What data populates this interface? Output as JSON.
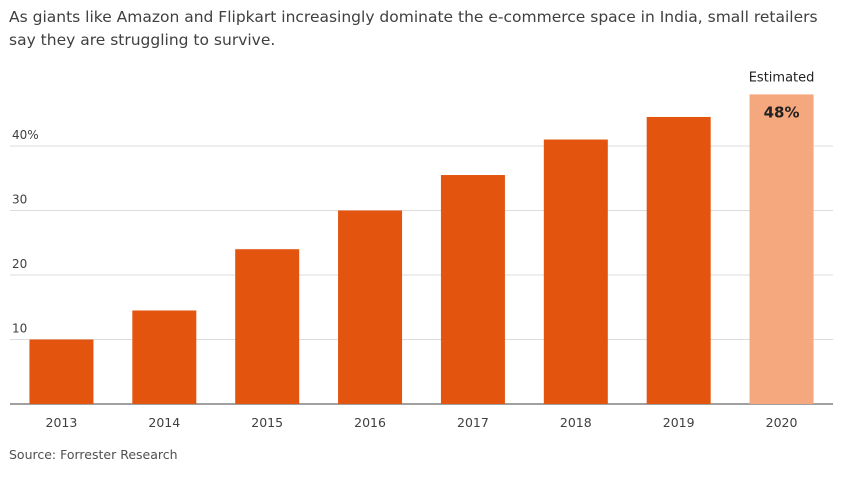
{
  "title": "As giants like Amazon and Flipkart increasingly dominate the e-commerce space in India, small retailers say they are struggling to survive.",
  "source": "Source: Forrester Research",
  "colors": {
    "bar": "#e3550f",
    "bar_estimated": "#f5a77e",
    "gridline": "#dcdcdc",
    "baseline": "#808080"
  },
  "chart_data": {
    "type": "bar",
    "title": "As giants like Amazon and Flipkart increasingly dominate the e-commerce space in India, small retailers say they are struggling to survive.",
    "xlabel": "",
    "ylabel": "",
    "categories": [
      "2013",
      "2014",
      "2015",
      "2016",
      "2017",
      "2018",
      "2019",
      "2020"
    ],
    "values": [
      10,
      14.5,
      24,
      30,
      35.5,
      41,
      44.5,
      48
    ],
    "estimated": [
      false,
      false,
      false,
      false,
      false,
      false,
      false,
      true
    ],
    "ylim": [
      0,
      48
    ],
    "yticks": [
      10,
      20,
      30,
      40
    ],
    "ytick_labels": [
      "10",
      "20",
      "30",
      "40%"
    ],
    "grid": true,
    "annotations": {
      "estimated_label": "Estimated",
      "estimated_value_label": "48%"
    }
  }
}
